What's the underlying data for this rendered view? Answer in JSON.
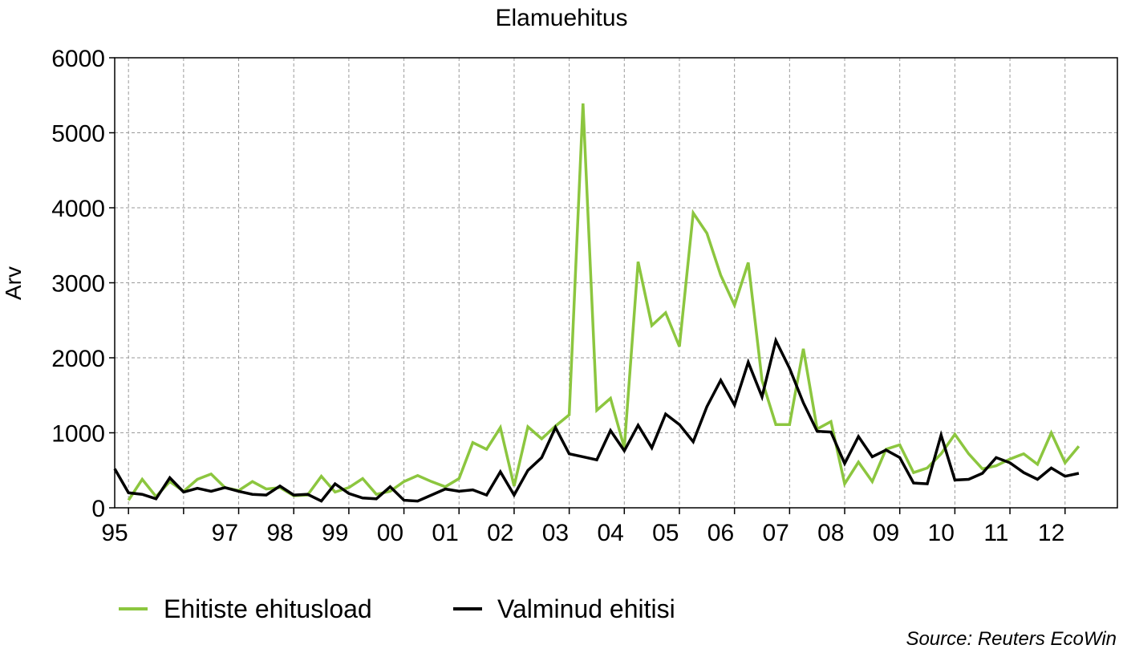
{
  "chart_data": {
    "type": "line",
    "title": "Elamuehitus",
    "ylabel": "Arv",
    "xlabel": "",
    "source": "Source: Reuters EcoWin",
    "ylim": [
      0,
      6000
    ],
    "yticks": [
      0,
      1000,
      2000,
      3000,
      4000,
      5000,
      6000
    ],
    "xlim": [
      1995.0,
      2013.2
    ],
    "xtick_values": [
      1995,
      1997,
      1998,
      1999,
      2000,
      2001,
      2002,
      2003,
      2004,
      2005,
      2006,
      2007,
      2008,
      2009,
      2010,
      2011,
      2012
    ],
    "xtick_labels": [
      "95",
      "97",
      "98",
      "99",
      "00",
      "01",
      "02",
      "03",
      "04",
      "05",
      "06",
      "07",
      "08",
      "09",
      "10",
      "11",
      "12"
    ],
    "xgrid_values": [
      1995.25,
      1996.25,
      1997.25,
      1998.25,
      1999.25,
      2000.25,
      2001.25,
      2002.25,
      2003.25,
      2004.25,
      2005.25,
      2006.25,
      2007.25,
      2008.25,
      2009.25,
      2010.25,
      2011.25,
      2012.25
    ],
    "grid": true,
    "legend_position": "bottom",
    "series": [
      {
        "name": "Ehitiste ehitusload",
        "color": "#8cc63f",
        "points": [
          [
            1995.25,
            100
          ],
          [
            1995.5,
            380
          ],
          [
            1995.75,
            150
          ],
          [
            1996.0,
            350
          ],
          [
            1996.25,
            220
          ],
          [
            1996.5,
            380
          ],
          [
            1996.75,
            450
          ],
          [
            1997.0,
            270
          ],
          [
            1997.25,
            230
          ],
          [
            1997.5,
            350
          ],
          [
            1997.75,
            250
          ],
          [
            1998.0,
            270
          ],
          [
            1998.25,
            160
          ],
          [
            1998.5,
            170
          ],
          [
            1998.75,
            420
          ],
          [
            1999.0,
            210
          ],
          [
            1999.25,
            270
          ],
          [
            1999.5,
            390
          ],
          [
            1999.75,
            180
          ],
          [
            2000.0,
            220
          ],
          [
            2000.25,
            350
          ],
          [
            2000.5,
            430
          ],
          [
            2000.75,
            350
          ],
          [
            2001.0,
            280
          ],
          [
            2001.25,
            390
          ],
          [
            2001.5,
            870
          ],
          [
            2001.75,
            780
          ],
          [
            2002.0,
            1070
          ],
          [
            2002.25,
            290
          ],
          [
            2002.5,
            1080
          ],
          [
            2002.75,
            920
          ],
          [
            2003.0,
            1090
          ],
          [
            2003.25,
            1240
          ],
          [
            2003.5,
            5390
          ],
          [
            2003.75,
            1300
          ],
          [
            2004.0,
            1460
          ],
          [
            2004.25,
            800
          ],
          [
            2004.5,
            3280
          ],
          [
            2004.75,
            2430
          ],
          [
            2005.0,
            2600
          ],
          [
            2005.25,
            2150
          ],
          [
            2005.5,
            3930
          ],
          [
            2005.75,
            3660
          ],
          [
            2006.0,
            3100
          ],
          [
            2006.25,
            2700
          ],
          [
            2006.5,
            3270
          ],
          [
            2006.75,
            1700
          ],
          [
            2007.0,
            1110
          ],
          [
            2007.25,
            1110
          ],
          [
            2007.5,
            2120
          ],
          [
            2007.75,
            1050
          ],
          [
            2008.0,
            1150
          ],
          [
            2008.25,
            320
          ],
          [
            2008.5,
            610
          ],
          [
            2008.75,
            350
          ],
          [
            2009.0,
            780
          ],
          [
            2009.25,
            840
          ],
          [
            2009.5,
            470
          ],
          [
            2009.75,
            530
          ],
          [
            2010.0,
            720
          ],
          [
            2010.25,
            980
          ],
          [
            2010.5,
            720
          ],
          [
            2010.75,
            520
          ],
          [
            2011.0,
            560
          ],
          [
            2011.25,
            650
          ],
          [
            2011.5,
            720
          ],
          [
            2011.75,
            580
          ],
          [
            2012.0,
            1000
          ],
          [
            2012.25,
            600
          ],
          [
            2012.5,
            820
          ]
        ]
      },
      {
        "name": "Valminud ehitisi",
        "color": "#000000",
        "points": [
          [
            1995.0,
            520
          ],
          [
            1995.25,
            200
          ],
          [
            1995.5,
            180
          ],
          [
            1995.75,
            120
          ],
          [
            1996.0,
            400
          ],
          [
            1996.25,
            210
          ],
          [
            1996.5,
            260
          ],
          [
            1996.75,
            220
          ],
          [
            1997.0,
            270
          ],
          [
            1997.25,
            220
          ],
          [
            1997.5,
            180
          ],
          [
            1997.75,
            170
          ],
          [
            1998.0,
            290
          ],
          [
            1998.25,
            170
          ],
          [
            1998.5,
            180
          ],
          [
            1998.75,
            90
          ],
          [
            1999.0,
            320
          ],
          [
            1999.25,
            190
          ],
          [
            1999.5,
            130
          ],
          [
            1999.75,
            120
          ],
          [
            2000.0,
            280
          ],
          [
            2000.25,
            100
          ],
          [
            2000.5,
            90
          ],
          [
            2000.75,
            170
          ],
          [
            2001.0,
            250
          ],
          [
            2001.25,
            220
          ],
          [
            2001.5,
            240
          ],
          [
            2001.75,
            170
          ],
          [
            2002.0,
            480
          ],
          [
            2002.25,
            170
          ],
          [
            2002.5,
            500
          ],
          [
            2002.75,
            670
          ],
          [
            2003.0,
            1070
          ],
          [
            2003.25,
            720
          ],
          [
            2003.5,
            680
          ],
          [
            2003.75,
            640
          ],
          [
            2004.0,
            1030
          ],
          [
            2004.25,
            760
          ],
          [
            2004.5,
            1100
          ],
          [
            2004.75,
            800
          ],
          [
            2005.0,
            1250
          ],
          [
            2005.25,
            1110
          ],
          [
            2005.5,
            880
          ],
          [
            2005.75,
            1350
          ],
          [
            2006.0,
            1700
          ],
          [
            2006.25,
            1370
          ],
          [
            2006.5,
            1940
          ],
          [
            2006.75,
            1480
          ],
          [
            2007.0,
            2230
          ],
          [
            2007.25,
            1860
          ],
          [
            2007.5,
            1400
          ],
          [
            2007.75,
            1020
          ],
          [
            2008.0,
            1010
          ],
          [
            2008.25,
            590
          ],
          [
            2008.5,
            950
          ],
          [
            2008.75,
            680
          ],
          [
            2009.0,
            770
          ],
          [
            2009.25,
            670
          ],
          [
            2009.5,
            330
          ],
          [
            2009.75,
            320
          ],
          [
            2010.0,
            970
          ],
          [
            2010.25,
            370
          ],
          [
            2010.5,
            380
          ],
          [
            2010.75,
            460
          ],
          [
            2011.0,
            670
          ],
          [
            2011.25,
            600
          ],
          [
            2011.5,
            470
          ],
          [
            2011.75,
            380
          ],
          [
            2012.0,
            530
          ],
          [
            2012.25,
            420
          ],
          [
            2012.5,
            460
          ]
        ]
      }
    ]
  }
}
